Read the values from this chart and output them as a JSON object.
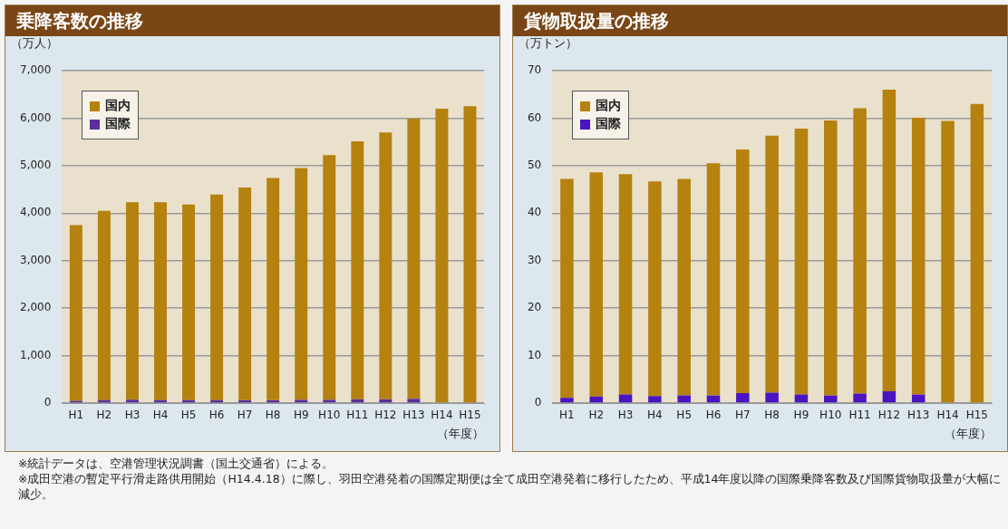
{
  "chart_data": [
    {
      "type": "bar",
      "title": "乗降客数の推移",
      "ylabel": "（万人）",
      "xlabel": "（年度）",
      "stacked": true,
      "grid": "y",
      "legend": "top left",
      "categories": [
        "H1",
        "H2",
        "H3",
        "H4",
        "H5",
        "H6",
        "H7",
        "H8",
        "H9",
        "H10",
        "H11",
        "H12",
        "H13",
        "H14",
        "H15"
      ],
      "series": [
        {
          "name": "国際",
          "color": "#5a2e9c",
          "values": [
            50,
            60,
            70,
            60,
            60,
            60,
            60,
            60,
            70,
            70,
            80,
            80,
            90,
            null,
            null
          ]
        },
        {
          "name": "国内",
          "color": "#b5820f",
          "values": [
            3700,
            3990,
            4160,
            4170,
            4120,
            4330,
            4480,
            4680,
            4880,
            5150,
            5430,
            5620,
            5900,
            6200,
            6250
          ]
        }
      ],
      "ylim": [
        0,
        7000
      ],
      "yticks": [
        {
          "value": 0,
          "label": "0"
        },
        {
          "value": 1000,
          "label": "1,000"
        },
        {
          "value": 2000,
          "label": "2,000"
        },
        {
          "value": 3000,
          "label": "3,000"
        },
        {
          "value": 4000,
          "label": "4,000"
        },
        {
          "value": 5000,
          "label": "5,000"
        },
        {
          "value": 6000,
          "label": "6,000"
        },
        {
          "value": 7000,
          "label": "7,000"
        }
      ],
      "annotations": [
        "※統計データは、空港管理状況調書（国土交通省）による。",
        "※成田空港の暫定平行滑走路供用開始（H14.4.18）に際し、羽田空港発着の国際定期便は全て成田空港発着に移行したため、平成14年度以降の国際乗降客数及び国際貨物取扱量が大幅に減少。"
      ]
    },
    {
      "type": "bar",
      "title": "貨物取扱量の推移",
      "ylabel": "（万トン）",
      "xlabel": "（年度）",
      "stacked": true,
      "grid": "y",
      "legend": "top left",
      "categories": [
        "H1",
        "H2",
        "H3",
        "H4",
        "H5",
        "H6",
        "H7",
        "H8",
        "H9",
        "H10",
        "H11",
        "H12",
        "H13",
        "H14",
        "H15"
      ],
      "series": [
        {
          "name": "国際",
          "color": "#4a14c0",
          "values": [
            1.1,
            1.4,
            1.8,
            1.5,
            1.6,
            1.6,
            2.1,
            2.2,
            1.8,
            1.6,
            2.0,
            2.5,
            1.8,
            0,
            0
          ]
        },
        {
          "name": "国内",
          "color": "#b5820f",
          "values": [
            46.1,
            47.2,
            46.4,
            45.2,
            45.6,
            48.9,
            51.3,
            54.1,
            56.0,
            57.9,
            60.1,
            63.5,
            58.3,
            59.4,
            63.0
          ]
        }
      ],
      "ylim": [
        0,
        70
      ],
      "yticks": [
        0,
        10,
        20,
        30,
        40,
        50,
        60,
        70
      ]
    }
  ]
}
